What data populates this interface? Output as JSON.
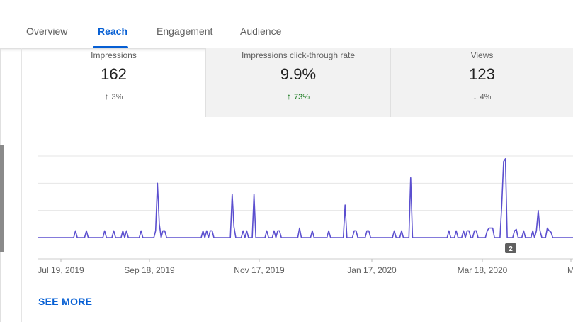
{
  "tabs": [
    {
      "label": "Overview",
      "active": false
    },
    {
      "label": "Reach",
      "active": true
    },
    {
      "label": "Engagement",
      "active": false
    },
    {
      "label": "Audience",
      "active": false
    }
  ],
  "metrics": [
    {
      "label": "Impressions",
      "value": "162",
      "delta": "3%",
      "direction": "up"
    },
    {
      "label": "Impressions click-through rate",
      "value": "9.9%",
      "delta": "73%",
      "direction": "up"
    },
    {
      "label": "Views",
      "value": "123",
      "delta": "4%",
      "direction": "down"
    }
  ],
  "colors": {
    "accent": "#065fd4",
    "line": "#5b4fcf",
    "positive": "#107516"
  },
  "chart_data": {
    "type": "line",
    "x_ticks": [
      "Jul 19, 2019",
      "Sep 18, 2019",
      "Nov 17, 2019",
      "Jan 17, 2020",
      "Mar 18, 2020",
      "M"
    ],
    "tooltip_value": "2",
    "ylim": [
      0,
      3
    ],
    "grid": true,
    "series": [
      {
        "name": "",
        "points": [
          [
            "2019-07-19",
            0
          ],
          [
            "2019-07-26",
            0
          ],
          [
            "2019-07-27",
            0.25
          ],
          [
            "2019-07-28",
            0
          ],
          [
            "2019-08-01",
            0
          ],
          [
            "2019-08-02",
            0.25
          ],
          [
            "2019-08-03",
            0
          ],
          [
            "2019-08-11",
            0
          ],
          [
            "2019-08-12",
            0.25
          ],
          [
            "2019-08-13",
            0
          ],
          [
            "2019-08-16",
            0
          ],
          [
            "2019-08-17",
            0.25
          ],
          [
            "2019-08-18",
            0
          ],
          [
            "2019-08-21",
            0
          ],
          [
            "2019-08-22",
            0.25
          ],
          [
            "2019-08-23",
            0
          ],
          [
            "2019-08-24",
            0.25
          ],
          [
            "2019-08-25",
            0
          ],
          [
            "2019-08-31",
            0
          ],
          [
            "2019-09-01",
            0.25
          ],
          [
            "2019-09-02",
            0
          ],
          [
            "2019-09-08",
            0
          ],
          [
            "2019-09-09",
            0.25
          ],
          [
            "2019-09-10",
            2
          ],
          [
            "2019-09-11",
            0.5
          ],
          [
            "2019-09-12",
            0
          ],
          [
            "2019-09-13",
            0.25
          ],
          [
            "2019-09-14",
            0.25
          ],
          [
            "2019-09-15",
            0
          ],
          [
            "2019-10-04",
            0
          ],
          [
            "2019-10-05",
            0.25
          ],
          [
            "2019-10-06",
            0
          ],
          [
            "2019-10-07",
            0.25
          ],
          [
            "2019-10-08",
            0
          ],
          [
            "2019-10-09",
            0.25
          ],
          [
            "2019-10-10",
            0.25
          ],
          [
            "2019-10-11",
            0
          ],
          [
            "2019-10-20",
            0
          ],
          [
            "2019-10-21",
            1.6
          ],
          [
            "2019-10-22",
            0.4
          ],
          [
            "2019-10-23",
            0
          ],
          [
            "2019-10-26",
            0
          ],
          [
            "2019-10-27",
            0.25
          ],
          [
            "2019-10-28",
            0
          ],
          [
            "2019-10-29",
            0.25
          ],
          [
            "2019-10-30",
            0
          ],
          [
            "2019-11-01",
            0
          ],
          [
            "2019-11-02",
            1.6
          ],
          [
            "2019-11-03",
            0
          ],
          [
            "2019-11-08",
            0
          ],
          [
            "2019-11-09",
            0.25
          ],
          [
            "2019-11-10",
            0
          ],
          [
            "2019-11-12",
            0
          ],
          [
            "2019-11-13",
            0.25
          ],
          [
            "2019-11-14",
            0
          ],
          [
            "2019-11-15",
            0.25
          ],
          [
            "2019-11-16",
            0.25
          ],
          [
            "2019-11-17",
            0
          ],
          [
            "2019-11-26",
            0
          ],
          [
            "2019-11-27",
            0.35
          ],
          [
            "2019-11-28",
            0
          ],
          [
            "2019-12-03",
            0
          ],
          [
            "2019-12-04",
            0.25
          ],
          [
            "2019-12-05",
            0
          ],
          [
            "2019-12-12",
            0
          ],
          [
            "2019-12-13",
            0.25
          ],
          [
            "2019-12-14",
            0
          ],
          [
            "2019-12-21",
            0
          ],
          [
            "2019-12-22",
            1.2
          ],
          [
            "2019-12-23",
            0
          ],
          [
            "2019-12-26",
            0
          ],
          [
            "2019-12-27",
            0.25
          ],
          [
            "2019-12-28",
            0.25
          ],
          [
            "2019-12-29",
            0
          ],
          [
            "2020-01-02",
            0
          ],
          [
            "2020-01-03",
            0.25
          ],
          [
            "2020-01-04",
            0.25
          ],
          [
            "2020-01-05",
            0
          ],
          [
            "2020-01-17",
            0
          ],
          [
            "2020-01-18",
            0.25
          ],
          [
            "2020-01-19",
            0
          ],
          [
            "2020-01-21",
            0
          ],
          [
            "2020-01-22",
            0.25
          ],
          [
            "2020-01-23",
            0
          ],
          [
            "2020-01-26",
            0
          ],
          [
            "2020-01-27",
            2.2
          ],
          [
            "2020-01-28",
            0
          ],
          [
            "2020-02-16",
            0
          ],
          [
            "2020-02-17",
            0.25
          ],
          [
            "2020-02-18",
            0
          ],
          [
            "2020-02-20",
            0
          ],
          [
            "2020-02-21",
            0.25
          ],
          [
            "2020-02-22",
            0
          ],
          [
            "2020-02-24",
            0
          ],
          [
            "2020-02-25",
            0.25
          ],
          [
            "2020-02-26",
            0
          ],
          [
            "2020-02-27",
            0.25
          ],
          [
            "2020-02-28",
            0.25
          ],
          [
            "2020-02-29",
            0
          ],
          [
            "2020-03-01",
            0
          ],
          [
            "2020-03-02",
            0.25
          ],
          [
            "2020-03-03",
            0.25
          ],
          [
            "2020-03-04",
            0
          ],
          [
            "2020-03-08",
            0
          ],
          [
            "2020-03-09",
            0.25
          ],
          [
            "2020-03-10",
            0.35
          ],
          [
            "2020-03-11",
            0.35
          ],
          [
            "2020-03-12",
            0.35
          ],
          [
            "2020-03-13",
            0
          ],
          [
            "2020-03-16",
            0
          ],
          [
            "2020-03-17",
            1.2
          ],
          [
            "2020-03-18",
            2.8
          ],
          [
            "2020-03-19",
            2.9
          ],
          [
            "2020-03-20",
            0
          ],
          [
            "2020-03-23",
            0
          ],
          [
            "2020-03-24",
            0.25
          ],
          [
            "2020-03-25",
            0.3
          ],
          [
            "2020-03-26",
            0
          ],
          [
            "2020-03-28",
            0
          ],
          [
            "2020-03-29",
            0.25
          ],
          [
            "2020-03-30",
            0
          ],
          [
            "2020-04-02",
            0
          ],
          [
            "2020-04-03",
            0.25
          ],
          [
            "2020-04-04",
            0
          ],
          [
            "2020-04-05",
            0.25
          ],
          [
            "2020-04-06",
            1.0
          ],
          [
            "2020-04-07",
            0.25
          ],
          [
            "2020-04-08",
            0
          ],
          [
            "2020-04-10",
            0
          ],
          [
            "2020-04-11",
            0.35
          ],
          [
            "2020-04-12",
            0.25
          ],
          [
            "2020-04-13",
            0.2
          ],
          [
            "2020-04-14",
            0
          ],
          [
            "2020-04-16",
            0
          ]
        ]
      }
    ]
  },
  "see_more": "SEE MORE"
}
